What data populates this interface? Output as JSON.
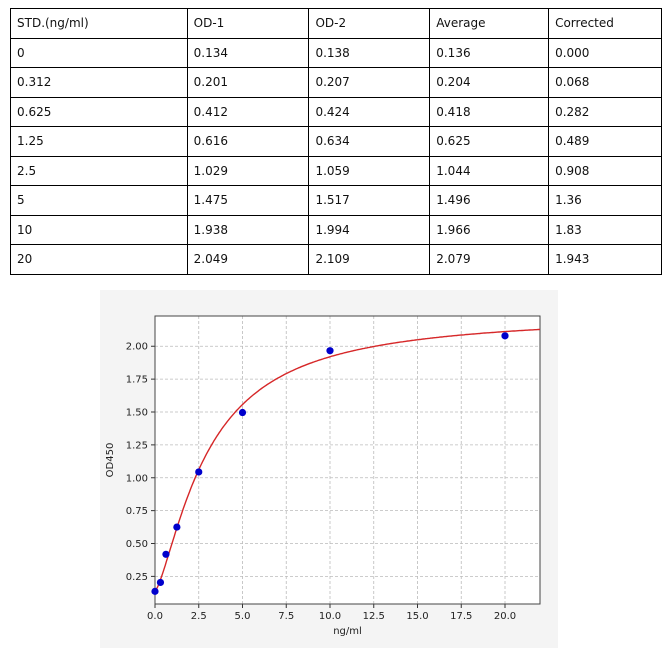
{
  "table": {
    "headers": [
      "STD.(ng/ml)",
      "OD-1",
      "OD-2",
      "Average",
      "Corrected"
    ],
    "rows": [
      [
        "0",
        "0.134",
        "0.138",
        "0.136",
        "0.000"
      ],
      [
        "0.312",
        "0.201",
        "0.207",
        "0.204",
        "0.068"
      ],
      [
        "0.625",
        "0.412",
        "0.424",
        "0.418",
        "0.282"
      ],
      [
        "1.25",
        "0.616",
        "0.634",
        "0.625",
        "0.489"
      ],
      [
        "2.5",
        "1.029",
        "1.059",
        "1.044",
        "0.908"
      ],
      [
        "5",
        "1.475",
        "1.517",
        "1.496",
        "1.36"
      ],
      [
        "10",
        "1.938",
        "1.994",
        "1.966",
        "1.83"
      ],
      [
        "20",
        "2.049",
        "2.109",
        "2.079",
        "1.943"
      ]
    ]
  },
  "chart_data": {
    "type": "scatter",
    "xlabel": "ng/ml",
    "ylabel": "OD450",
    "xlim": [
      0,
      22
    ],
    "ylim": [
      0.04,
      2.23
    ],
    "xticks": [
      "0.0",
      "2.5",
      "5.0",
      "7.5",
      "10.0",
      "12.5",
      "15.0",
      "17.5",
      "20.0"
    ],
    "yticks": [
      "0.25",
      "0.50",
      "0.75",
      "1.00",
      "1.25",
      "1.50",
      "1.75",
      "2.00"
    ],
    "grid": true,
    "points": {
      "x": [
        0,
        0.312,
        0.625,
        1.25,
        2.5,
        5,
        10,
        20
      ],
      "y": [
        0.136,
        0.204,
        0.418,
        0.625,
        1.044,
        1.496,
        1.966,
        2.079
      ]
    },
    "fit_curve": "four-parameter logistic",
    "colors": {
      "points": "#0000cc",
      "curve": "#d62728"
    }
  }
}
